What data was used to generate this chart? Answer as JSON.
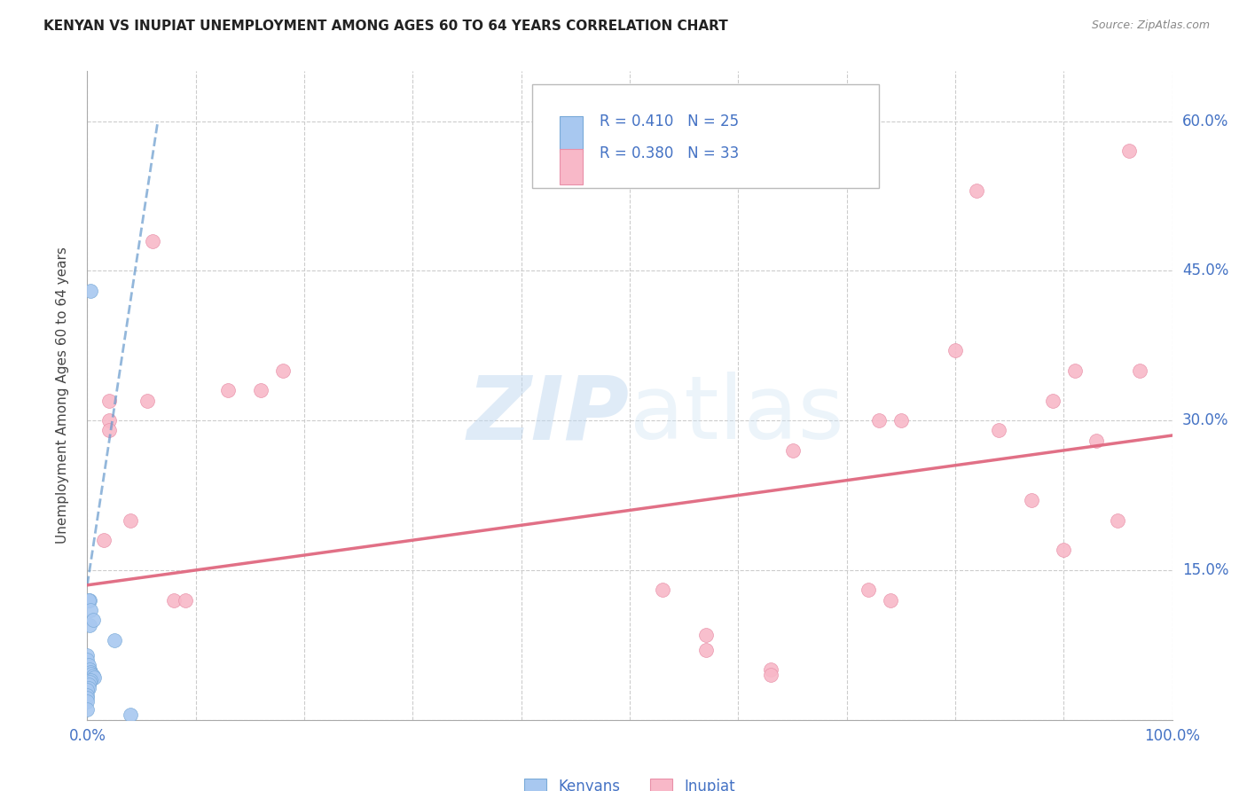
{
  "title": "KENYAN VS INUPIAT UNEMPLOYMENT AMONG AGES 60 TO 64 YEARS CORRELATION CHART",
  "source": "Source: ZipAtlas.com",
  "ylabel": "Unemployment Among Ages 60 to 64 years",
  "xlim": [
    0,
    1.0
  ],
  "ylim": [
    0,
    0.65
  ],
  "xticks": [
    0.0,
    0.1,
    0.2,
    0.3,
    0.4,
    0.5,
    0.6,
    0.7,
    0.8,
    0.9,
    1.0
  ],
  "xticklabels": [
    "0.0%",
    "",
    "",
    "",
    "",
    "",
    "",
    "",
    "",
    "",
    "100.0%"
  ],
  "yticks": [
    0.0,
    0.15,
    0.3,
    0.45,
    0.6
  ],
  "yticklabels": [
    "",
    "15.0%",
    "30.0%",
    "45.0%",
    "60.0%"
  ],
  "kenyan_color": "#a8c8f0",
  "kenyan_edge": "#7aaad8",
  "inupiat_color": "#f8b8c8",
  "inupiat_edge": "#e890a8",
  "kenyan_scatter_x": [
    0.003,
    0.002,
    0.001,
    0.0,
    0.0,
    0.001,
    0.002,
    0.003,
    0.004,
    0.005,
    0.006,
    0.003,
    0.002,
    0.001,
    0.001,
    0.0,
    0.0,
    0.0,
    0.0,
    0.0,
    0.002,
    0.003,
    0.04,
    0.025,
    0.005
  ],
  "kenyan_scatter_y": [
    0.43,
    0.12,
    0.12,
    0.065,
    0.06,
    0.055,
    0.05,
    0.048,
    0.046,
    0.044,
    0.042,
    0.04,
    0.038,
    0.035,
    0.032,
    0.03,
    0.025,
    0.022,
    0.018,
    0.01,
    0.095,
    0.11,
    0.005,
    0.08,
    0.1
  ],
  "inupiat_scatter_x": [
    0.015,
    0.02,
    0.04,
    0.055,
    0.06,
    0.08,
    0.09,
    0.13,
    0.16,
    0.18,
    0.53,
    0.57,
    0.57,
    0.63,
    0.63,
    0.65,
    0.72,
    0.73,
    0.74,
    0.75,
    0.8,
    0.82,
    0.84,
    0.87,
    0.89,
    0.9,
    0.91,
    0.93,
    0.95,
    0.96,
    0.97,
    0.02,
    0.02
  ],
  "inupiat_scatter_y": [
    0.18,
    0.3,
    0.2,
    0.32,
    0.48,
    0.12,
    0.12,
    0.33,
    0.33,
    0.35,
    0.13,
    0.07,
    0.085,
    0.05,
    0.045,
    0.27,
    0.13,
    0.3,
    0.12,
    0.3,
    0.37,
    0.53,
    0.29,
    0.22,
    0.32,
    0.17,
    0.35,
    0.28,
    0.2,
    0.57,
    0.35,
    0.29,
    0.32
  ],
  "kenyan_line_x": [
    0.0,
    0.065
  ],
  "kenyan_line_y": [
    0.135,
    0.6
  ],
  "inupiat_line_x": [
    0.0,
    1.0
  ],
  "inupiat_line_y": [
    0.135,
    0.285
  ],
  "watermark_zip": "ZIP",
  "watermark_atlas": "atlas",
  "marker_size": 130,
  "background_color": "#ffffff",
  "grid_color": "#cccccc",
  "tick_color": "#4472c4",
  "legend_text_color": "#4472c4",
  "title_fontsize": 11,
  "legend_R1": "R = 0.410",
  "legend_N1": "N = 25",
  "legend_R2": "R = 0.380",
  "legend_N2": "N = 33"
}
